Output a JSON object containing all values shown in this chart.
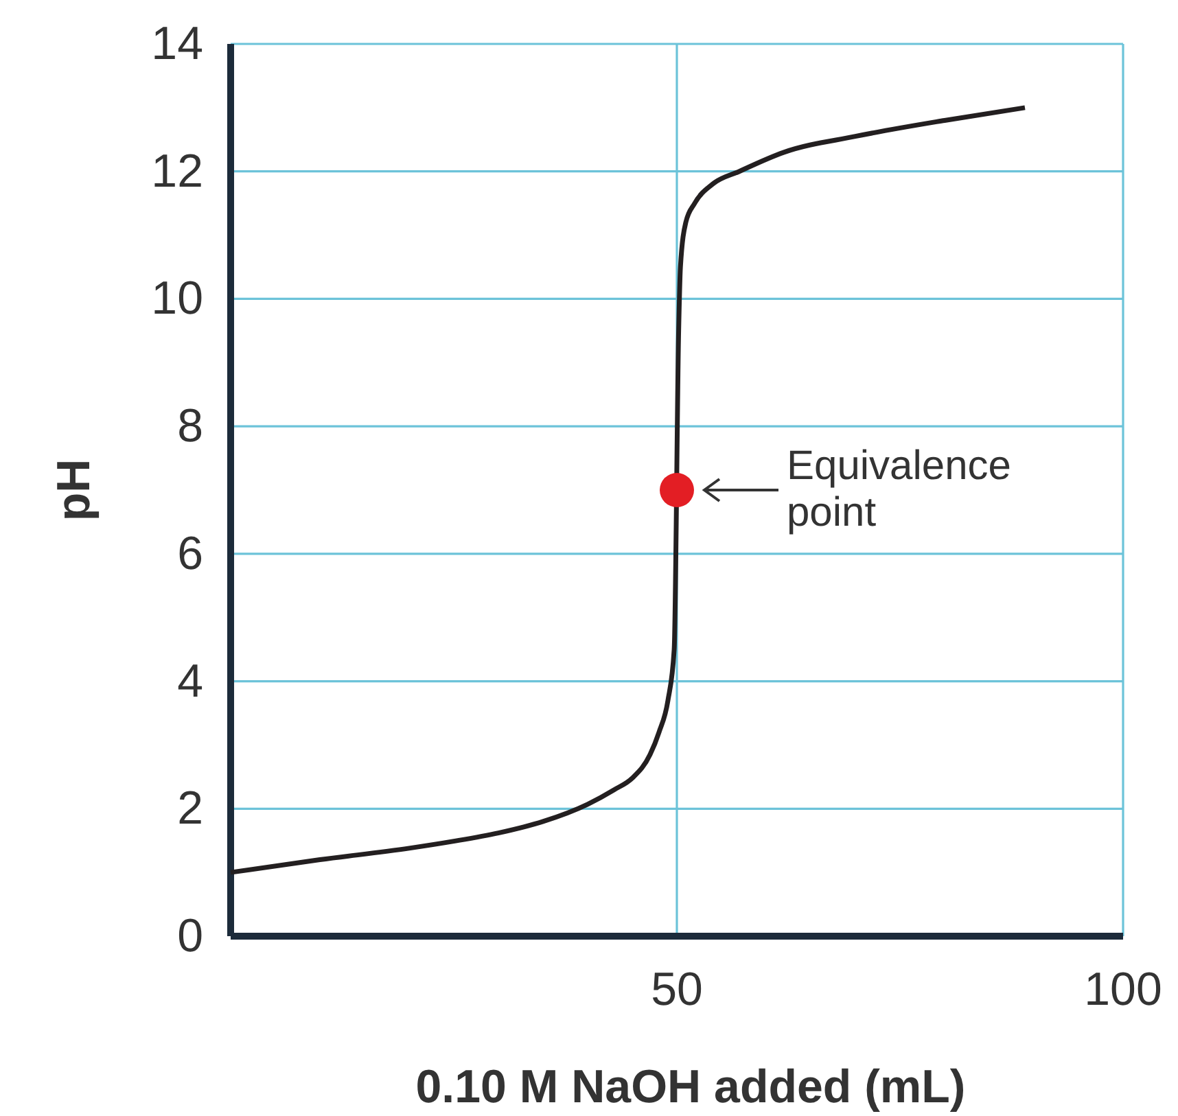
{
  "chart_data": {
    "type": "line",
    "xlabel": "0.10 M NaOH added (mL)",
    "ylabel": "pH",
    "xlim": [
      0,
      100
    ],
    "ylim": [
      0,
      14
    ],
    "xticks": [
      50,
      100
    ],
    "yticks": [
      0,
      2,
      4,
      6,
      8,
      10,
      12,
      14
    ],
    "grid": true,
    "marker": "none",
    "line_style": "solid",
    "series": [
      {
        "color": "#231f20",
        "x": [
          0,
          10,
          20,
          25,
          30,
          35,
          40,
          43,
          45,
          47,
          48,
          49,
          49.7,
          50.2,
          50.4,
          51,
          52,
          54,
          57,
          62,
          70,
          80,
          89
        ],
        "values": [
          1,
          1.2,
          1.38,
          1.49,
          1.62,
          1.8,
          2.07,
          2.3,
          2.48,
          2.85,
          3.2,
          3.7,
          4.5,
          9.5,
          10.5,
          11.2,
          11.5,
          11.8,
          12,
          12.3,
          12.55,
          12.8,
          13
        ]
      },
      {
        "type": "scatter",
        "marker": "circle",
        "color": "#e31e24",
        "x": [
          50
        ],
        "values": [
          7
        ]
      }
    ],
    "annotations": [
      {
        "text": "Equivalence\npoint",
        "x": 50,
        "y": 7
      }
    ]
  }
}
